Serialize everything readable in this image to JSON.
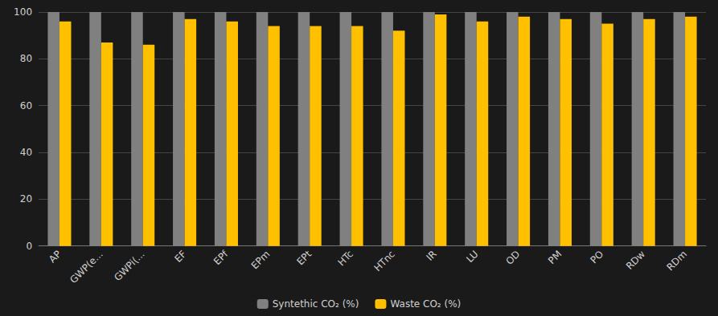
{
  "chart_data": {
    "type": "bar",
    "categories": [
      "AP",
      "GWP(e...",
      "GWPi(...",
      "EF",
      "EPf",
      "EPm",
      "EPt",
      "HTc",
      "HTnc",
      "IR",
      "LU",
      "OD",
      "PM",
      "PO",
      "RDw",
      "RDm"
    ],
    "series": [
      {
        "name": "Syntethic CO₂ (%)",
        "color": "#808080",
        "values": [
          100,
          100,
          100,
          100,
          100,
          100,
          100,
          100,
          100,
          100,
          100,
          100,
          100,
          100,
          100,
          100
        ]
      },
      {
        "name": "Waste CO₂ (%)",
        "color": "#FFC000",
        "values": [
          96,
          87,
          86,
          97,
          96,
          94,
          94,
          94,
          92,
          99,
          96,
          98,
          97,
          95,
          97,
          98
        ]
      }
    ],
    "ylim": [
      0,
      100
    ],
    "yticks": [
      0,
      20,
      40,
      60,
      80,
      100
    ],
    "grid": true,
    "legend": "bottom"
  }
}
